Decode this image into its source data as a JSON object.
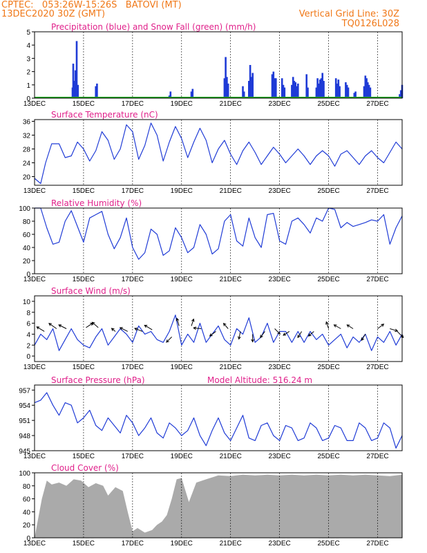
{
  "header": {
    "line1": "CPTEC:   053:26W-15:26S   BATOVI (MT)",
    "line2": "13DEC2020 30Z (GMT)",
    "grid_note": "Vertical Grid Line: 30Z",
    "code": "TQ0126L028"
  },
  "colors": {
    "header": "#f07818",
    "title": "#e0208a",
    "line": "#1f3bd6",
    "precip": "#1f3bd6",
    "snow": "#22aa22",
    "cloud": "#aaaaaa"
  },
  "chart_data": [
    {
      "type": "bar",
      "title": "Precipitation (blue) and Snow Fall (green) (mm/h)",
      "ylim": [
        0,
        5
      ],
      "yticks": [
        0,
        1,
        2,
        3,
        4,
        5
      ],
      "xlabels": [
        "13DEC",
        "15DEC",
        "17DEC",
        "19DEC",
        "21DEC",
        "23DEC",
        "25DEC",
        "27DEC"
      ],
      "x_start_day": 13,
      "x_end_day": 28,
      "bars": [
        [
          14.55,
          0.8
        ],
        [
          14.58,
          2.6
        ],
        [
          14.62,
          1.3
        ],
        [
          14.67,
          2.1
        ],
        [
          14.72,
          4.3
        ],
        [
          14.77,
          1.0
        ],
        [
          15.5,
          0.9
        ],
        [
          15.55,
          1.1
        ],
        [
          18.5,
          0.2
        ],
        [
          18.55,
          0.5
        ],
        [
          19.4,
          0.5
        ],
        [
          19.45,
          0.7
        ],
        [
          20.75,
          1.5
        ],
        [
          20.8,
          3.1
        ],
        [
          20.85,
          1.6
        ],
        [
          20.9,
          1.1
        ],
        [
          21.5,
          0.9
        ],
        [
          21.55,
          0.5
        ],
        [
          21.75,
          1.3
        ],
        [
          21.8,
          2.5
        ],
        [
          21.85,
          1.6
        ],
        [
          21.9,
          1.9
        ],
        [
          22.7,
          1.8
        ],
        [
          22.75,
          2.0
        ],
        [
          22.8,
          1.5
        ],
        [
          22.85,
          1.5
        ],
        [
          23.1,
          1.5
        ],
        [
          23.15,
          1.0
        ],
        [
          23.2,
          0.8
        ],
        [
          23.5,
          1.0
        ],
        [
          23.55,
          1.6
        ],
        [
          23.6,
          1.3
        ],
        [
          23.65,
          1.2
        ],
        [
          23.7,
          0.9
        ],
        [
          23.75,
          1.1
        ],
        [
          24.1,
          1.8
        ],
        [
          24.15,
          0.8
        ],
        [
          24.5,
          0.8
        ],
        [
          24.55,
          1.5
        ],
        [
          24.6,
          1.1
        ],
        [
          24.65,
          1.4
        ],
        [
          24.7,
          1.5
        ],
        [
          24.75,
          1.9
        ],
        [
          24.8,
          1.3
        ],
        [
          25.3,
          1.5
        ],
        [
          25.35,
          1.1
        ],
        [
          25.4,
          1.4
        ],
        [
          25.45,
          0.9
        ],
        [
          25.7,
          1.2
        ],
        [
          25.75,
          1.0
        ],
        [
          25.8,
          0.8
        ],
        [
          26.05,
          0.4
        ],
        [
          26.1,
          0.5
        ],
        [
          26.45,
          0.9
        ],
        [
          26.5,
          1.7
        ],
        [
          26.55,
          1.5
        ],
        [
          26.6,
          1.2
        ],
        [
          26.65,
          1.0
        ],
        [
          26.7,
          0.8
        ],
        [
          27.9,
          0.3
        ],
        [
          27.95,
          0.6
        ],
        [
          28.0,
          1.0
        ]
      ]
    },
    {
      "type": "line",
      "title": "Surface Temperature (nC)",
      "ylim": [
        17.5,
        36.5
      ],
      "yticks": [
        20,
        24,
        28,
        32,
        36
      ],
      "xlabels": [
        "13DEC",
        "15DEC",
        "17DEC",
        "19DEC",
        "21DEC",
        "23DEC",
        "25DEC",
        "27DEC"
      ],
      "x_start_day": 13,
      "x_end_day": 28,
      "x": [
        13.0,
        13.25,
        13.45,
        13.7,
        14.0,
        14.25,
        14.5,
        14.75,
        15.0,
        15.25,
        15.5,
        15.75,
        16.0,
        16.25,
        16.5,
        16.75,
        17.0,
        17.25,
        17.5,
        17.75,
        18.0,
        18.25,
        18.5,
        18.75,
        19.0,
        19.25,
        19.5,
        19.75,
        20.0,
        20.25,
        20.5,
        20.75,
        21.0,
        21.25,
        21.5,
        21.75,
        22.0,
        22.25,
        22.5,
        22.75,
        23.0,
        23.25,
        23.5,
        23.75,
        24.0,
        24.25,
        24.5,
        24.75,
        25.0,
        25.25,
        25.5,
        25.75,
        26.0,
        26.25,
        26.5,
        26.75,
        27.0,
        27.25,
        27.5,
        27.75,
        28.0
      ],
      "values": [
        19.5,
        18.0,
        24.0,
        29.5,
        29.5,
        25.5,
        26.0,
        30.0,
        28.0,
        24.5,
        27.5,
        33.0,
        30.5,
        25.0,
        28.0,
        35.0,
        33.0,
        25.0,
        29.0,
        35.5,
        32.0,
        24.5,
        30.0,
        34.5,
        31.0,
        25.5,
        30.0,
        34.0,
        30.5,
        24.0,
        28.0,
        30.5,
        26.5,
        23.5,
        27.5,
        30.0,
        27.0,
        23.5,
        26.0,
        28.5,
        26.5,
        24.0,
        26.0,
        28.0,
        26.0,
        23.5,
        26.0,
        27.5,
        26.0,
        23.0,
        26.5,
        27.5,
        25.5,
        23.5,
        26.0,
        27.5,
        25.5,
        24.0,
        27.0,
        30.0,
        28.0
      ]
    },
    {
      "type": "line",
      "title": "Relative Humidity (%)",
      "ylim": [
        0,
        100
      ],
      "yticks": [
        0,
        20,
        40,
        60,
        80,
        100
      ],
      "xlabels": [
        "13DEC",
        "15DEC",
        "17DEC",
        "19DEC",
        "21DEC",
        "23DEC",
        "25DEC",
        "27DEC"
      ],
      "x_start_day": 13,
      "x_end_day": 28,
      "x": [
        13.0,
        13.25,
        13.5,
        13.75,
        14.0,
        14.25,
        14.5,
        14.75,
        15.0,
        15.25,
        15.5,
        15.75,
        16.0,
        16.25,
        16.5,
        16.75,
        17.0,
        17.25,
        17.5,
        17.75,
        18.0,
        18.25,
        18.5,
        18.75,
        19.0,
        19.25,
        19.5,
        19.75,
        20.0,
        20.25,
        20.5,
        20.75,
        21.0,
        21.25,
        21.5,
        21.75,
        22.0,
        22.25,
        22.5,
        22.75,
        23.0,
        23.25,
        23.5,
        23.75,
        24.0,
        24.25,
        24.5,
        24.75,
        25.0,
        25.25,
        25.5,
        25.75,
        26.0,
        26.25,
        26.5,
        26.75,
        27.0,
        27.25,
        27.5,
        27.75,
        28.0
      ],
      "values": [
        100,
        100,
        70,
        45,
        48,
        80,
        96,
        72,
        48,
        85,
        90,
        95,
        60,
        38,
        55,
        85,
        40,
        22,
        32,
        68,
        60,
        28,
        35,
        70,
        55,
        32,
        40,
        75,
        60,
        30,
        38,
        80,
        90,
        50,
        42,
        85,
        55,
        40,
        90,
        92,
        50,
        45,
        80,
        85,
        75,
        62,
        85,
        80,
        100,
        98,
        70,
        78,
        72,
        75,
        78,
        82,
        80,
        90,
        45,
        70,
        88
      ]
    },
    {
      "type": "line",
      "title": "Surface Wind (m/s)",
      "ylim": [
        -1,
        11
      ],
      "yticks": [
        0,
        2,
        4,
        6,
        8,
        10
      ],
      "xlabels": [
        "13DEC",
        "15DEC",
        "17DEC",
        "19DEC",
        "21DEC",
        "23DEC",
        "25DEC",
        "27DEC"
      ],
      "x_start_day": 13,
      "x_end_day": 28,
      "x": [
        13.0,
        13.25,
        13.5,
        13.75,
        14.0,
        14.25,
        14.5,
        14.75,
        15.0,
        15.25,
        15.5,
        15.75,
        16.0,
        16.25,
        16.5,
        16.75,
        17.0,
        17.25,
        17.5,
        17.75,
        18.0,
        18.25,
        18.5,
        18.75,
        19.0,
        19.25,
        19.5,
        19.75,
        20.0,
        20.25,
        20.5,
        20.75,
        21.0,
        21.25,
        21.5,
        21.75,
        22.0,
        22.25,
        22.5,
        22.75,
        23.0,
        23.25,
        23.5,
        23.75,
        24.0,
        24.25,
        24.5,
        24.75,
        25.0,
        25.25,
        25.5,
        25.75,
        26.0,
        26.25,
        26.5,
        26.75,
        27.0,
        27.25,
        27.5,
        27.75,
        28.0
      ],
      "values": [
        2.0,
        4.0,
        3.0,
        5.0,
        1.0,
        3.0,
        5.0,
        3.0,
        2.0,
        1.5,
        3.5,
        5.0,
        2.0,
        3.5,
        5.0,
        4.0,
        2.5,
        5.5,
        4.0,
        4.5,
        3.0,
        2.5,
        4.5,
        7.5,
        2.0,
        4.0,
        2.5,
        6.0,
        2.5,
        4.0,
        5.5,
        3.0,
        2.0,
        5.0,
        4.0,
        7.0,
        2.5,
        3.5,
        6.0,
        2.5,
        4.5,
        4.5,
        2.5,
        4.5,
        2.5,
        4.5,
        3.0,
        4.0,
        2.0,
        3.0,
        4.0,
        1.5,
        3.5,
        2.5,
        4.0,
        1.0,
        3.5,
        2.5,
        4.5,
        2.0,
        4.0
      ],
      "arrows": [
        [
          13.4,
          4.5,
          -1,
          0.6
        ],
        [
          13.9,
          5.0,
          -1,
          0.7
        ],
        [
          14.3,
          5.0,
          -1,
          0.5
        ],
        [
          15.1,
          5.2,
          0.9,
          0.6
        ],
        [
          15.6,
          5.2,
          -0.8,
          0.7
        ],
        [
          16.3,
          4.5,
          -0.5,
          0.4
        ],
        [
          16.8,
          4.5,
          -1,
          0.5
        ],
        [
          17.4,
          4.5,
          -1,
          0.4
        ],
        [
          17.8,
          4.8,
          -1,
          0.6
        ],
        [
          18.6,
          3.5,
          -0.7,
          -0.7
        ],
        [
          18.9,
          5.5,
          -0.3,
          1.0
        ],
        [
          19.4,
          5.5,
          0.3,
          0.9
        ],
        [
          19.8,
          5.0,
          -1,
          0.1
        ],
        [
          20.4,
          4.5,
          -0.8,
          -0.6
        ],
        [
          20.9,
          5.0,
          -0.6,
          0.7
        ],
        [
          21.4,
          4.5,
          -0.2,
          -1.0
        ],
        [
          21.9,
          4.0,
          0,
          -1.0
        ],
        [
          22.4,
          4.5,
          -0.6,
          -0.8
        ],
        [
          22.8,
          5.0,
          0.7,
          -0.7
        ],
        [
          23.4,
          4.5,
          -0.8,
          -0.5
        ],
        [
          23.9,
          4.5,
          -0.5,
          -0.8
        ],
        [
          24.4,
          4.5,
          -0.7,
          -0.6
        ],
        [
          25.0,
          5.0,
          -0.3,
          0.9
        ],
        [
          25.5,
          5.0,
          -0.9,
          0.5
        ],
        [
          26.0,
          5.0,
          -0.8,
          0.5
        ],
        [
          26.5,
          4.0,
          -0.5,
          -0.8
        ],
        [
          27.0,
          5.0,
          0.8,
          0.6
        ],
        [
          27.5,
          5.0,
          1.0,
          -0.3
        ],
        [
          27.8,
          4.5,
          0.8,
          -0.8
        ]
      ]
    },
    {
      "type": "line",
      "title": "Surface Pressure (hPa)",
      "annotation": "Model Altitude: 516.24 m",
      "ylim": [
        945,
        958
      ],
      "yticks": [
        945,
        948,
        951,
        954,
        957
      ],
      "xlabels": [
        "13DEC",
        "15DEC",
        "17DEC",
        "19DEC",
        "21DEC",
        "23DEC",
        "25DEC",
        "27DEC"
      ],
      "x_start_day": 13,
      "x_end_day": 28,
      "x": [
        13.0,
        13.25,
        13.5,
        13.75,
        14.0,
        14.25,
        14.5,
        14.75,
        15.0,
        15.25,
        15.5,
        15.75,
        16.0,
        16.25,
        16.5,
        16.75,
        17.0,
        17.25,
        17.5,
        17.75,
        18.0,
        18.25,
        18.5,
        18.75,
        19.0,
        19.25,
        19.5,
        19.75,
        20.0,
        20.25,
        20.5,
        20.75,
        21.0,
        21.25,
        21.5,
        21.75,
        22.0,
        22.25,
        22.5,
        22.75,
        23.0,
        23.25,
        23.5,
        23.75,
        24.0,
        24.25,
        24.5,
        24.75,
        25.0,
        25.25,
        25.5,
        25.75,
        26.0,
        26.25,
        26.5,
        26.75,
        27.0,
        27.25,
        27.5,
        27.75,
        28.0
      ],
      "values": [
        954.5,
        955.0,
        956.5,
        954.0,
        952.0,
        954.5,
        954.0,
        950.5,
        951.5,
        953.0,
        950.0,
        949.0,
        951.5,
        950.0,
        948.5,
        952.0,
        950.5,
        948.0,
        949.5,
        951.5,
        948.5,
        947.5,
        950.5,
        949.5,
        948.0,
        949.0,
        951.5,
        948.0,
        946.0,
        949.0,
        951.5,
        948.5,
        947.0,
        949.5,
        952.0,
        947.5,
        947.0,
        950.0,
        950.5,
        948.0,
        947.0,
        950.0,
        949.5,
        947.0,
        947.5,
        950.5,
        949.5,
        947.0,
        947.5,
        950.0,
        949.5,
        947.0,
        947.0,
        950.5,
        949.5,
        947.0,
        947.5,
        950.5,
        949.5,
        945.5,
        948.0
      ]
    },
    {
      "type": "area",
      "title": "Cloud Cover (%)",
      "ylim": [
        0,
        100
      ],
      "yticks": [
        0,
        20,
        40,
        60,
        80,
        100
      ],
      "xlabels": [
        "13DEC",
        "15DEC",
        "17DEC",
        "19DEC",
        "21DEC",
        "23DEC",
        "25DEC",
        "27DEC"
      ],
      "x_start_day": 13,
      "x_end_day": 28,
      "x": [
        13.0,
        13.3,
        13.5,
        13.7,
        14.0,
        14.3,
        14.6,
        14.9,
        15.2,
        15.5,
        15.8,
        16.0,
        16.3,
        16.6,
        16.8,
        17.0,
        17.2,
        17.5,
        17.8,
        18.0,
        18.2,
        18.4,
        18.6,
        18.8,
        19.0,
        19.3,
        19.6,
        20.0,
        20.5,
        21.0,
        21.5,
        22.0,
        22.5,
        23.0,
        23.5,
        24.0,
        24.5,
        25.0,
        25.5,
        26.0,
        26.5,
        27.0,
        27.5,
        28.0
      ],
      "values": [
        0,
        60,
        88,
        82,
        85,
        80,
        90,
        88,
        78,
        84,
        80,
        65,
        78,
        72,
        40,
        10,
        15,
        8,
        12,
        20,
        25,
        35,
        60,
        90,
        92,
        55,
        85,
        90,
        96,
        95,
        97,
        96,
        97,
        96,
        97,
        96,
        97,
        96,
        97,
        96,
        97,
        96,
        95,
        97
      ]
    }
  ]
}
